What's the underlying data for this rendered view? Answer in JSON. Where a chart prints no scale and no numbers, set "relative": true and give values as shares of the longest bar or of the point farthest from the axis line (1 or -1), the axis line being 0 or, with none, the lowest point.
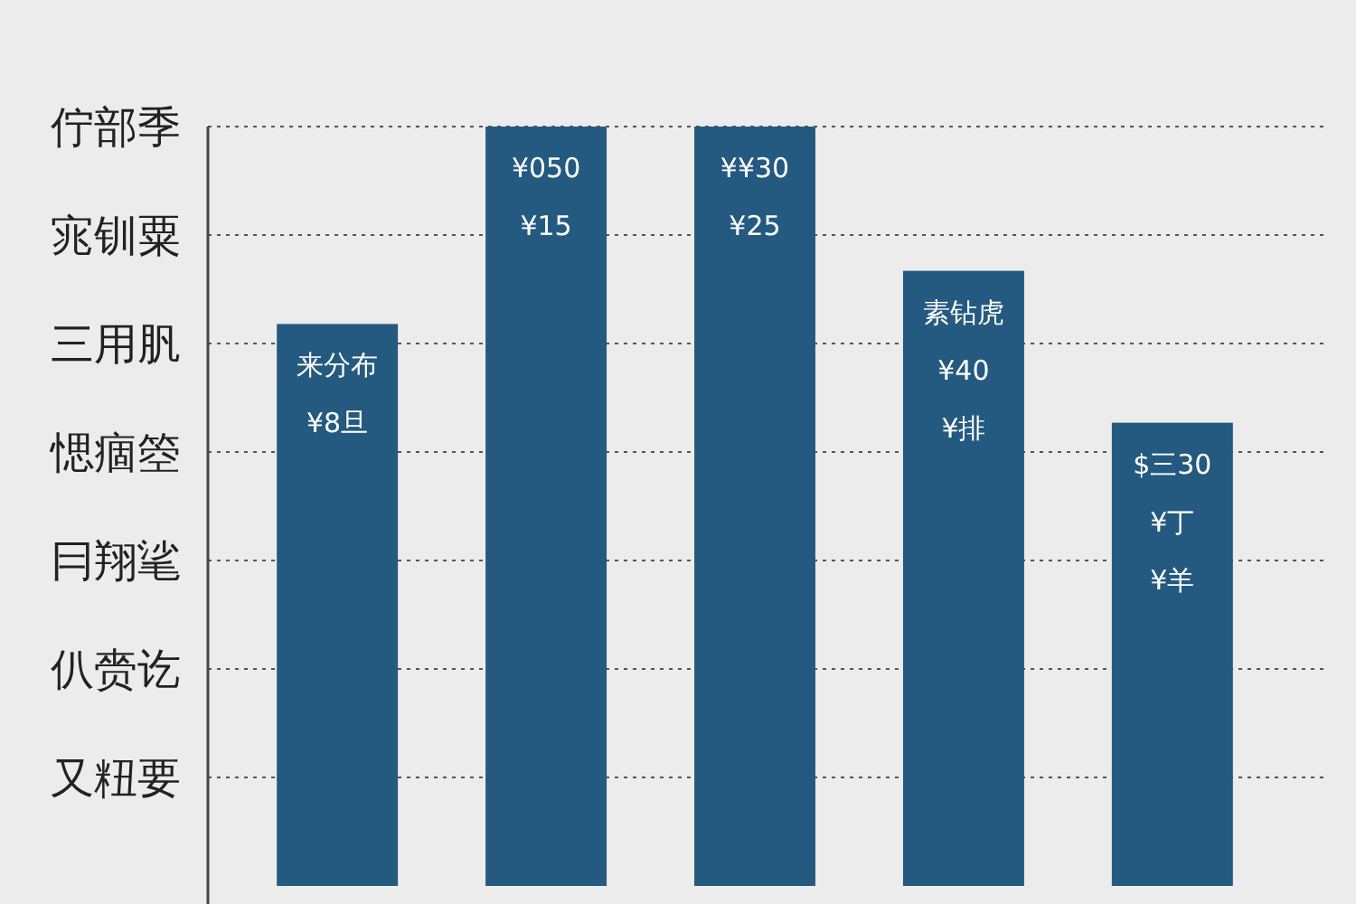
{
  "chart_data": {
    "type": "bar",
    "relative": true,
    "categories": [
      null,
      null,
      null,
      null,
      null
    ],
    "values": [
      0.74,
      1,
      1,
      0.81,
      0.61
    ],
    "color": "#245a80",
    "grid": true,
    "annotations": [
      "佇部季",
      "宨钏粟",
      "三用䏎",
      "愢痼箜",
      "冃翔㲚",
      "仈赍讫",
      "又粈要",
      "来分布\n¥8旦",
      "¥050\n¥15",
      "¥¥30\n¥25",
      "素钻虎\n¥40\n¥排",
      "$三30\n¥丁\n¥羊"
    ]
  }
}
